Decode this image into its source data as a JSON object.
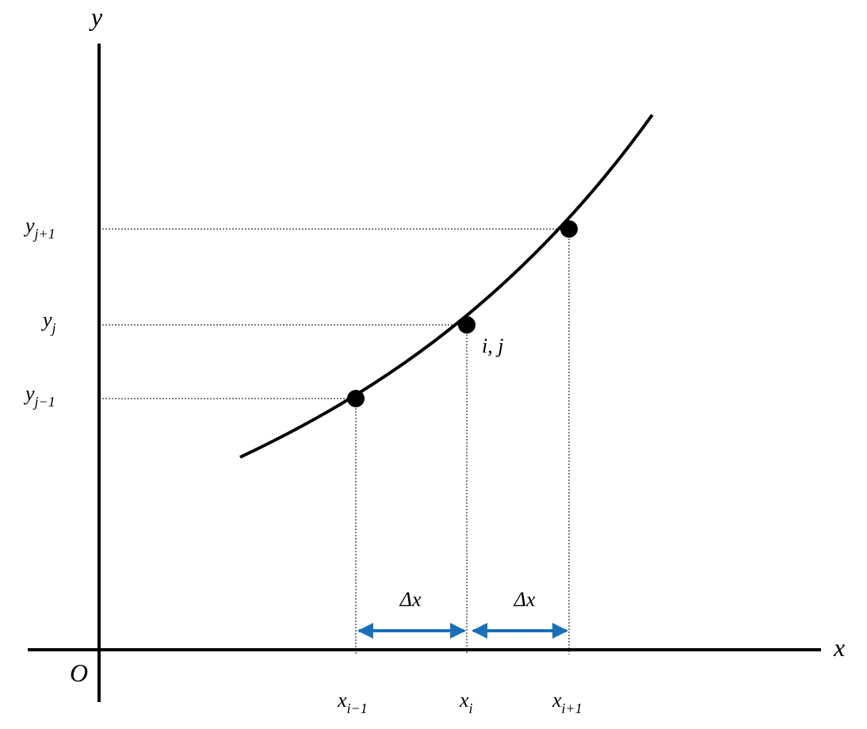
{
  "axes": {
    "y_label": "y",
    "x_label": "x",
    "origin": "O"
  },
  "y_ticks": [
    {
      "base": "y",
      "sub": "j+1"
    },
    {
      "base": "y",
      "sub": "j"
    },
    {
      "base": "y",
      "sub": "j−1"
    }
  ],
  "x_ticks": [
    {
      "base": "x",
      "sub": "i−1"
    },
    {
      "base": "x",
      "sub": "i"
    },
    {
      "base": "x",
      "sub": "i+1"
    }
  ],
  "point_label": "i, j",
  "spacing": [
    "Δx",
    "Δx"
  ]
}
